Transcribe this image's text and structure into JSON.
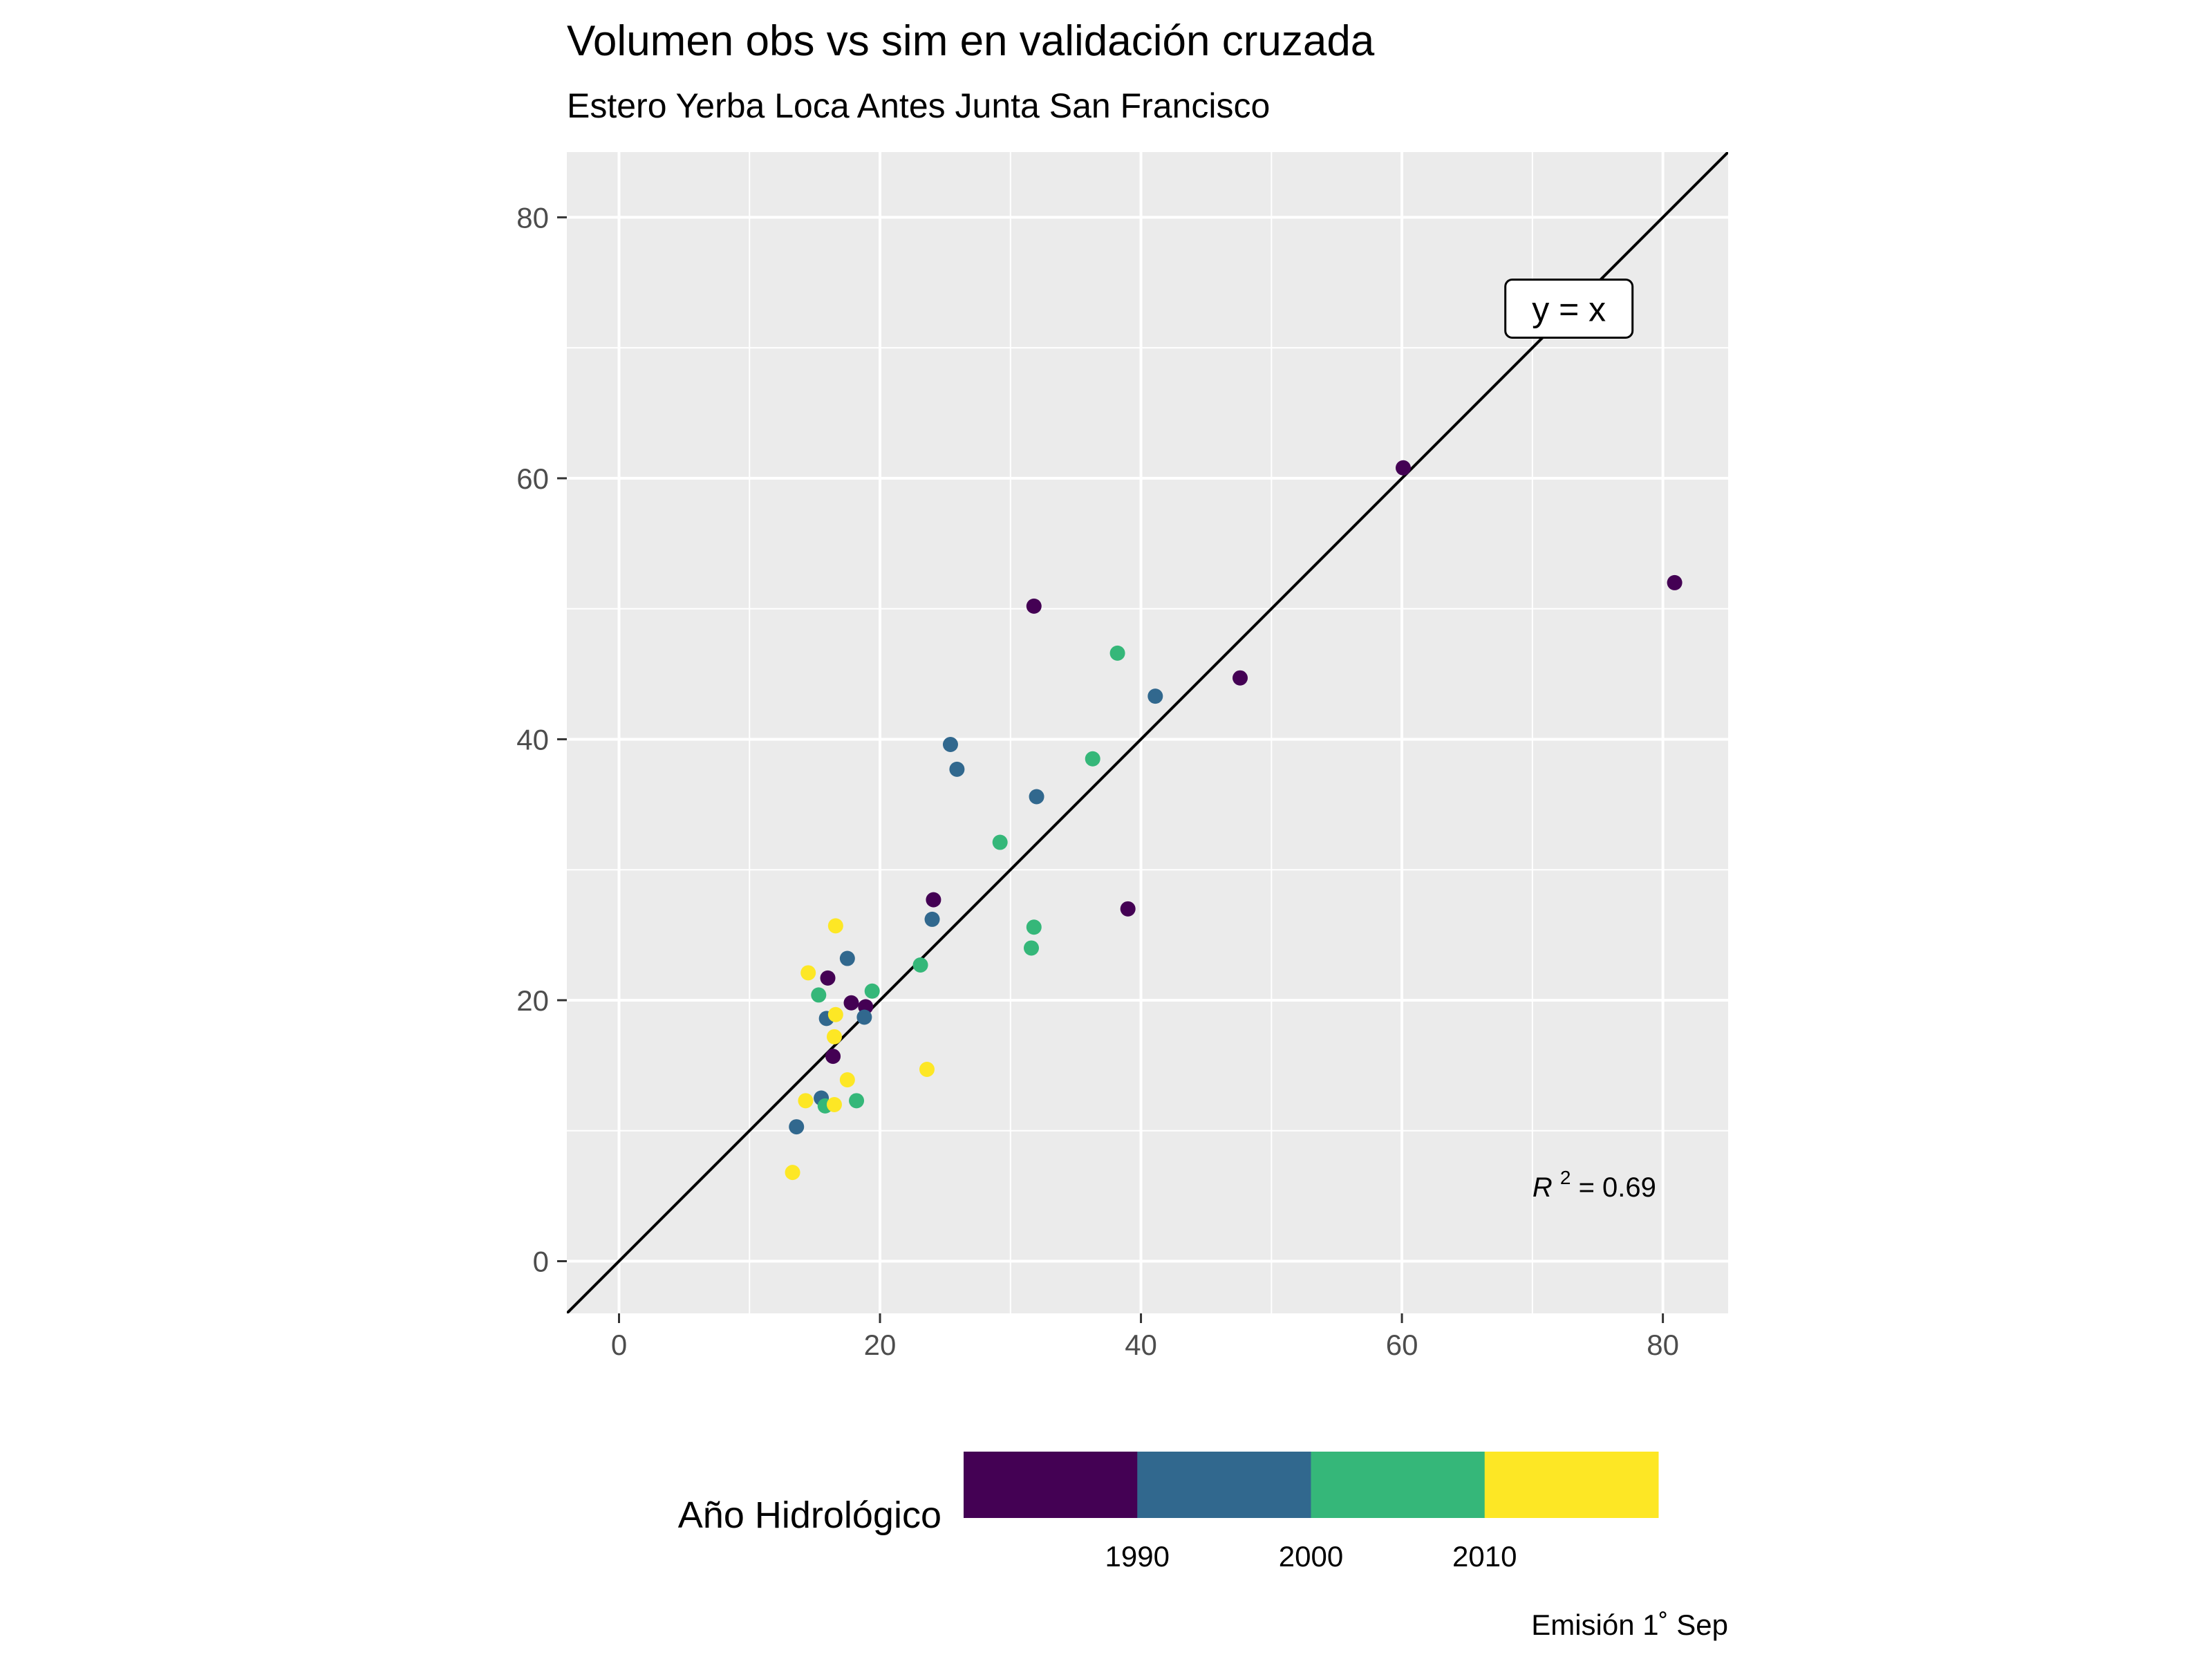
{
  "chart_data": {
    "type": "scatter",
    "title": "Volumen obs vs sim en validación cruzada",
    "subtitle": "Estero Yerba Loca Antes Junta San Francisco",
    "xlabel": "",
    "ylabel": "",
    "xlim": [
      -4,
      85
    ],
    "ylim": [
      -4,
      85
    ],
    "x_ticks": [
      0,
      20,
      40,
      60,
      80
    ],
    "y_ticks": [
      0,
      20,
      40,
      60,
      80
    ],
    "x_tick_labels": [
      "0",
      "20",
      "40",
      "60",
      "80"
    ],
    "y_tick_labels": [
      "0",
      "20",
      "40",
      "60",
      "80"
    ],
    "grid": true,
    "panel_background": "#ebebeb",
    "reference_line": {
      "label": "y = x",
      "slope": 1,
      "intercept": 0,
      "label_at": [
        72.8,
        73
      ]
    },
    "r_squared": {
      "symbol": "R",
      "exponent": "2",
      "text": " = 0.69",
      "at": [
        70,
        5.7
      ]
    },
    "legend": {
      "title": "Año Hidrológico",
      "position": "bottom",
      "type": "binned-colorbar",
      "bins": [
        {
          "from": 1980,
          "to": 1990,
          "color": "#440154"
        },
        {
          "from": 1990,
          "to": 2000,
          "color": "#31688e"
        },
        {
          "from": 2000,
          "to": 2010,
          "color": "#35b779"
        },
        {
          "from": 2010,
          "to": 2020,
          "color": "#fde725"
        }
      ],
      "breaks": [
        "1990",
        "2000",
        "2010"
      ]
    },
    "caption": "Emisión 1˚ Sep",
    "points": [
      {
        "x": 60.1,
        "y": 60.8,
        "group": 1980
      },
      {
        "x": 80.9,
        "y": 52.0,
        "group": 1980
      },
      {
        "x": 47.6,
        "y": 44.7,
        "group": 1980
      },
      {
        "x": 31.8,
        "y": 50.2,
        "group": 1980
      },
      {
        "x": 39.0,
        "y": 27.0,
        "group": 1980
      },
      {
        "x": 24.1,
        "y": 27.7,
        "group": 1980
      },
      {
        "x": 16.0,
        "y": 21.7,
        "group": 1980
      },
      {
        "x": 17.8,
        "y": 19.8,
        "group": 1980
      },
      {
        "x": 18.9,
        "y": 19.5,
        "group": 1980
      },
      {
        "x": 16.4,
        "y": 15.7,
        "group": 1980
      },
      {
        "x": 41.1,
        "y": 43.3,
        "group": 1990
      },
      {
        "x": 25.4,
        "y": 39.6,
        "group": 1990
      },
      {
        "x": 25.9,
        "y": 37.7,
        "group": 1990
      },
      {
        "x": 32.0,
        "y": 35.6,
        "group": 1990
      },
      {
        "x": 24.0,
        "y": 26.2,
        "group": 1990
      },
      {
        "x": 17.5,
        "y": 23.2,
        "group": 1990
      },
      {
        "x": 15.9,
        "y": 18.6,
        "group": 1990
      },
      {
        "x": 18.8,
        "y": 18.7,
        "group": 1990
      },
      {
        "x": 15.5,
        "y": 12.5,
        "group": 1990
      },
      {
        "x": 13.6,
        "y": 10.3,
        "group": 1990
      },
      {
        "x": 38.2,
        "y": 46.6,
        "group": 2000
      },
      {
        "x": 36.3,
        "y": 38.5,
        "group": 2000
      },
      {
        "x": 29.2,
        "y": 32.1,
        "group": 2000
      },
      {
        "x": 31.8,
        "y": 25.6,
        "group": 2000
      },
      {
        "x": 31.6,
        "y": 24.0,
        "group": 2000
      },
      {
        "x": 23.1,
        "y": 22.7,
        "group": 2000
      },
      {
        "x": 19.4,
        "y": 20.7,
        "group": 2000
      },
      {
        "x": 15.3,
        "y": 20.4,
        "group": 2000
      },
      {
        "x": 18.2,
        "y": 12.3,
        "group": 2000
      },
      {
        "x": 15.8,
        "y": 11.9,
        "group": 2000
      },
      {
        "x": 16.6,
        "y": 25.7,
        "group": 2010
      },
      {
        "x": 14.5,
        "y": 22.1,
        "group": 2010
      },
      {
        "x": 16.6,
        "y": 18.9,
        "group": 2010
      },
      {
        "x": 16.5,
        "y": 17.2,
        "group": 2010
      },
      {
        "x": 23.6,
        "y": 14.7,
        "group": 2010
      },
      {
        "x": 17.5,
        "y": 13.9,
        "group": 2010
      },
      {
        "x": 14.3,
        "y": 12.3,
        "group": 2010
      },
      {
        "x": 16.5,
        "y": 12.0,
        "group": 2010
      },
      {
        "x": 13.3,
        "y": 6.8,
        "group": 2010
      }
    ]
  }
}
